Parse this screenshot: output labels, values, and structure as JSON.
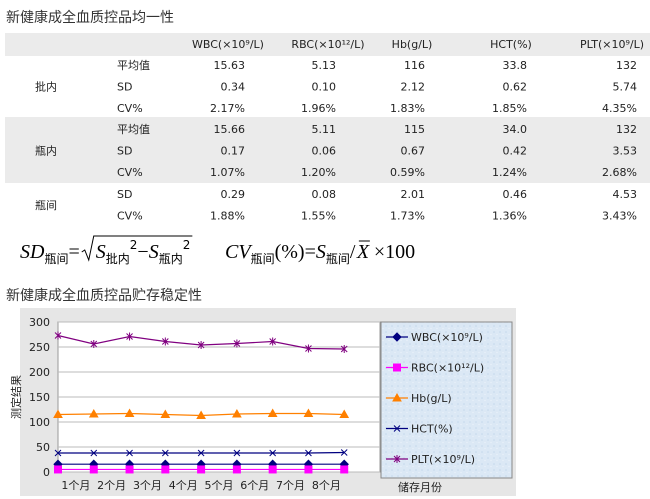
{
  "title1": "新健康成全血质控品均一性",
  "table": {
    "columns": [
      "WBC(×10⁹/L)",
      "RBC(×10¹²/L)",
      "Hb(g/L)",
      "HCT(%)",
      "PLT(×10⁹/L)"
    ],
    "groups": [
      {
        "label": "批内",
        "rows": [
          {
            "label": "平均值",
            "cells": [
              "15.63",
              "5.13",
              "116",
              "33.8",
              "132"
            ]
          },
          {
            "label": "SD",
            "cells": [
              "0.34",
              "0.10",
              "2.12",
              "0.62",
              "5.74"
            ]
          },
          {
            "label": "CV%",
            "cells": [
              "2.17%",
              "1.96%",
              "1.83%",
              "1.85%",
              "4.35%"
            ]
          }
        ]
      },
      {
        "label": "瓶内",
        "rows": [
          {
            "label": "平均值",
            "cells": [
              "15.66",
              "5.11",
              "115",
              "34.0",
              "132"
            ]
          },
          {
            "label": "SD",
            "cells": [
              "0.17",
              "0.06",
              "0.67",
              "0.42",
              "3.53"
            ]
          },
          {
            "label": "CV%",
            "cells": [
              "1.07%",
              "1.20%",
              "0.59%",
              "1.24%",
              "2.68%"
            ]
          }
        ]
      },
      {
        "label": "瓶间",
        "rows": [
          {
            "label": "SD",
            "cells": [
              "0.29",
              "0.08",
              "2.01",
              "0.46",
              "4.53"
            ]
          },
          {
            "label": "CV%",
            "cells": [
              "1.88%",
              "1.55%",
              "1.73%",
              "1.36%",
              "3.43%"
            ]
          }
        ]
      }
    ]
  },
  "formulas": {
    "sd": {
      "lhs": "SD",
      "lhs_sub": "瓶间",
      "eq": "=",
      "s1": "S",
      "s1_sub": "批内",
      "s1_sup": "2",
      "minus": "−",
      "s2": "S",
      "s2_sub": "瓶内",
      "s2_sup": "2"
    },
    "cv": {
      "lhs": "CV",
      "lhs_sub": "瓶间",
      "pct": "(%)",
      "eq": "=",
      "s": "S",
      "s_sub": "瓶间",
      "slash": "/",
      "xbar": "X",
      "times": "×100"
    }
  },
  "title2": "新健康成全血质控品贮存稳定性",
  "chart_data": {
    "type": "line",
    "y_label": "测定结果",
    "x_label": "储存月份",
    "categories": [
      "1个月",
      "2个月",
      "3个月",
      "4个月",
      "5个月",
      "6个月",
      "7个月",
      "8个月",
      null
    ],
    "ylim": [
      0,
      300
    ],
    "yticks": [
      0,
      50,
      100,
      150,
      200,
      250,
      300
    ],
    "grid": true,
    "series": [
      {
        "name": "WBC(×10⁹/L)",
        "color": "#000080",
        "marker": "diamond",
        "values": [
          15.6,
          15.6,
          15.6,
          15.6,
          15.6,
          15.6,
          15.6,
          15.6,
          15.6
        ]
      },
      {
        "name": "RBC(×10¹²/L)",
        "color": "#ff00ff",
        "marker": "square",
        "values": [
          5.1,
          5.1,
          5.1,
          5.1,
          5.1,
          5.1,
          5.1,
          5.1,
          5.1
        ]
      },
      {
        "name": "Hb(g/L)",
        "color": "#ff8000",
        "marker": "triangle",
        "values": [
          115,
          116,
          117,
          115,
          113,
          116,
          117,
          117,
          115
        ]
      },
      {
        "name": "HCT(%)",
        "color": "#000080",
        "marker": "x",
        "values": [
          38,
          38,
          38,
          38,
          38,
          38,
          38,
          38,
          39
        ]
      },
      {
        "name": "PLT(×10⁹/L)",
        "color": "#800080",
        "marker": "star",
        "values": [
          273,
          256,
          271,
          261,
          254,
          257,
          261,
          247,
          246
        ]
      }
    ]
  }
}
